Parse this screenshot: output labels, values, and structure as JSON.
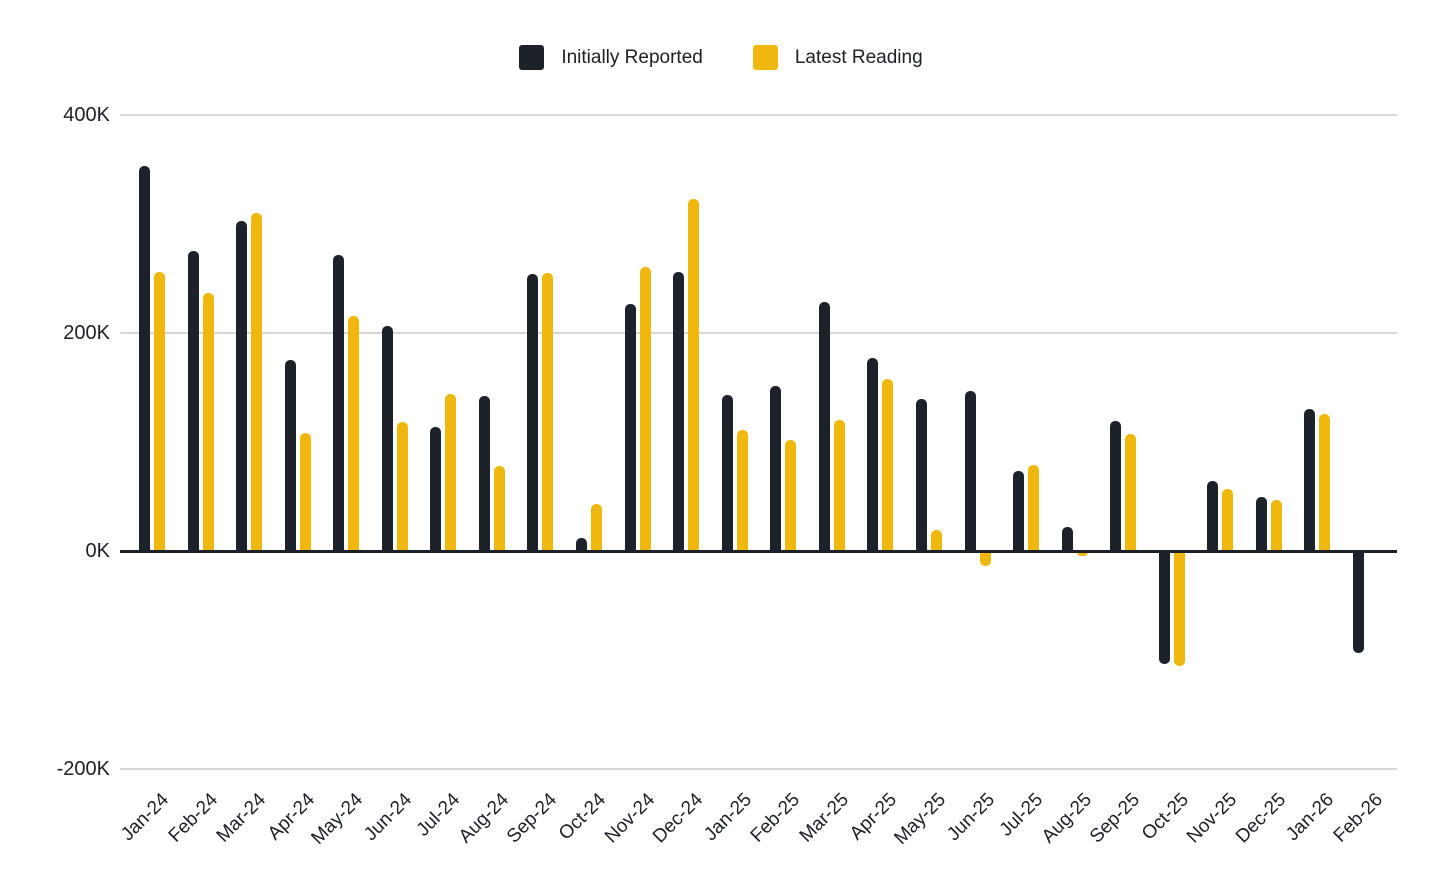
{
  "legend": {
    "items": [
      {
        "label": "Initially Reported",
        "color": "#1d212a"
      },
      {
        "label": "Latest Reading",
        "color": "#f0b80d"
      }
    ]
  },
  "chart_data": {
    "type": "bar",
    "title": "",
    "unit": "K (thousands)",
    "categories": [
      "Jan-24",
      "Feb-24",
      "Mar-24",
      "Apr-24",
      "May-24",
      "Jun-24",
      "Jul-24",
      "Aug-24",
      "Sep-24",
      "Oct-24",
      "Nov-24",
      "Dec-24",
      "Jan-25",
      "Feb-25",
      "Mar-25",
      "Apr-25",
      "May-25",
      "Jun-25",
      "Jul-25",
      "Aug-25",
      "Sep-25",
      "Oct-25",
      "Nov-25",
      "Dec-25",
      "Jan-26",
      "Feb-26"
    ],
    "series": [
      {
        "name": "Initially Reported",
        "color": "#1d212a",
        "values": [
          353,
          275,
          303,
          175,
          272,
          206,
          114,
          142,
          254,
          12,
          227,
          256,
          143,
          151,
          228,
          177,
          139,
          147,
          73,
          22,
          119,
          -103,
          64,
          50,
          130,
          -93
        ]
      },
      {
        "name": "Latest Reading",
        "color": "#f0b80d",
        "values": [
          256,
          237,
          310,
          108,
          216,
          118,
          144,
          78,
          255,
          43,
          261,
          323,
          111,
          102,
          120,
          158,
          19,
          -13,
          79,
          -4,
          107,
          -105,
          57,
          47,
          126,
          null
        ]
      }
    ],
    "ylim": [
      -200,
      400
    ],
    "yticks": [
      {
        "label": "400K",
        "value": 400
      },
      {
        "label": "200K",
        "value": 200
      },
      {
        "label": "0K",
        "value": 0
      },
      {
        "label": "-200K",
        "value": -200
      }
    ],
    "grid": "horizontal",
    "legend_position": "top-center",
    "x_label_rotation_deg": -45,
    "zero_axis_emphasized": true
  }
}
